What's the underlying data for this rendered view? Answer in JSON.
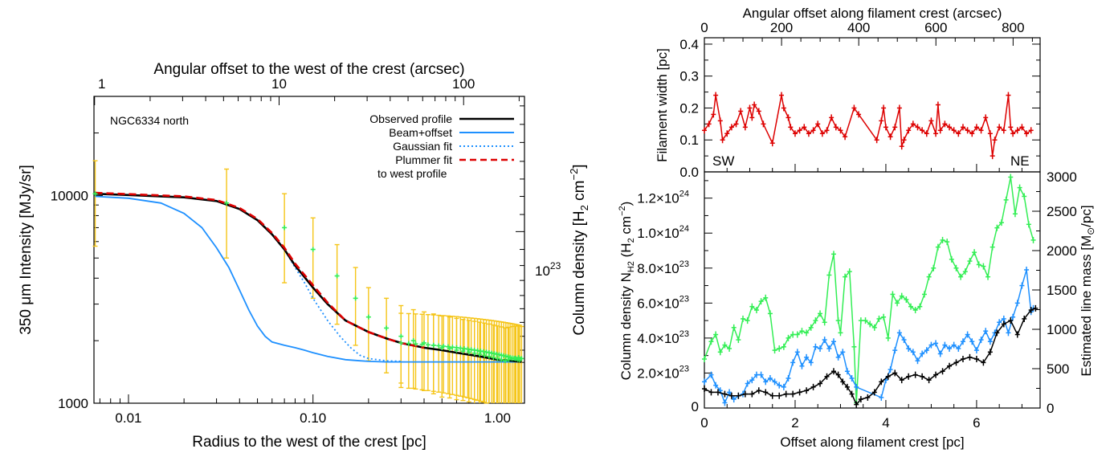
{
  "chart_data": [
    {
      "type": "line",
      "title": "",
      "annotation": "NGC6334 north",
      "xlabel": "Radius to the west of the crest [pc]",
      "x2label": "Angular offset to the west of the crest (arcsec)",
      "ylabel": "350 μm Intensity [MJy/sr]",
      "y2label": "Column density [H2 cm−2]",
      "xscale": "log",
      "yscale": "log",
      "xlim": [
        0.0065,
        1.4
      ],
      "ylim": [
        1000,
        30000
      ],
      "xticks": [
        "0.01",
        "0.10",
        "1.00"
      ],
      "yticks": [
        "1000",
        "10000"
      ],
      "x2ticks": [
        "1",
        "10",
        "100"
      ],
      "y2ticks": [
        "10^23"
      ],
      "legend_position": "top-right",
      "series": [
        {
          "name": "Observed profile",
          "color": "#000000",
          "style": "solid",
          "x": [
            0.0066,
            0.01,
            0.02,
            0.03,
            0.04,
            0.05,
            0.06,
            0.07,
            0.08,
            0.1,
            0.12,
            0.15,
            0.2,
            0.25,
            0.3,
            0.4,
            0.5,
            0.6,
            0.8,
            1.0,
            1.2,
            1.35
          ],
          "y": [
            10200,
            10050,
            9800,
            9400,
            8600,
            7600,
            6500,
            5500,
            4600,
            3600,
            3000,
            2500,
            2200,
            2050,
            1950,
            1850,
            1800,
            1750,
            1680,
            1620,
            1600,
            1580
          ]
        },
        {
          "name": "Beam+offset",
          "color": "#1e90ff",
          "style": "solid",
          "x": [
            0.0066,
            0.01,
            0.015,
            0.02,
            0.025,
            0.03,
            0.035,
            0.04,
            0.045,
            0.05,
            0.055,
            0.06,
            0.07,
            0.08,
            0.09,
            0.1,
            0.12,
            0.15,
            0.18,
            0.2,
            0.25,
            0.3,
            0.5,
            1.0,
            1.35
          ],
          "y": [
            9900,
            9700,
            9200,
            8200,
            7000,
            5600,
            4500,
            3500,
            2800,
            2350,
            2100,
            1970,
            1900,
            1850,
            1800,
            1750,
            1680,
            1620,
            1600,
            1590,
            1580,
            1580,
            1580,
            1580,
            1580
          ]
        },
        {
          "name": "Gaussian fit",
          "color": "#1e90ff",
          "style": "dotted",
          "x": [
            0.0066,
            0.01,
            0.02,
            0.03,
            0.04,
            0.05,
            0.06,
            0.07,
            0.08,
            0.09,
            0.1,
            0.12,
            0.14,
            0.16,
            0.18,
            0.2,
            0.25,
            0.3
          ],
          "y": [
            10200,
            10050,
            9800,
            9400,
            8600,
            7600,
            6500,
            5500,
            4500,
            3800,
            3200,
            2500,
            2100,
            1850,
            1700,
            1640,
            1600,
            1590
          ]
        },
        {
          "name": "Plummer fit to west profile",
          "color": "#dd0000",
          "style": "dashed",
          "x": [
            0.0066,
            0.01,
            0.02,
            0.03,
            0.04,
            0.05,
            0.06,
            0.07,
            0.08,
            0.1,
            0.12,
            0.15,
            0.2,
            0.25,
            0.3,
            0.4
          ],
          "y": [
            10300,
            10150,
            9900,
            9500,
            8700,
            7700,
            6600,
            5600,
            4700,
            3700,
            3050,
            2500,
            2200,
            2050,
            1950,
            1850
          ]
        },
        {
          "name": "",
          "color": "#33ee55",
          "style": "markers",
          "x": [
            0.0066,
            0.034,
            0.07,
            0.1,
            0.135,
            0.17,
            0.2,
            0.25,
            0.3,
            0.35,
            0.4,
            0.45,
            0.5,
            0.55,
            0.6,
            0.65,
            0.7,
            0.75,
            0.8,
            0.85,
            0.9,
            0.95,
            1.0,
            1.05,
            1.1,
            1.15,
            1.2,
            1.25,
            1.3,
            1.35
          ],
          "y": [
            10200,
            9200,
            7000,
            5500,
            4100,
            3200,
            2600,
            2300,
            2100,
            2000,
            1950,
            1900,
            1850,
            1830,
            1800,
            1780,
            1760,
            1740,
            1720,
            1700,
            1680,
            1660,
            1640,
            1620,
            1600,
            1620,
            1640,
            1650,
            1660,
            1640
          ],
          "yerr": [
            4500,
            4200,
            3200,
            2300,
            1700,
            1300,
            1000,
            900,
            850,
            820,
            800,
            790,
            780,
            770,
            760,
            750,
            745,
            740,
            735,
            730,
            725,
            720,
            715,
            710,
            705,
            700,
            700,
            700,
            700,
            700
          ]
        }
      ]
    },
    {
      "type": "line",
      "title": "",
      "ylabel": "Filament width [pc]",
      "x2label": "Angular offset along filament crest (arcsec)",
      "xlim": [
        0,
        7.4
      ],
      "ylim": [
        0,
        0.42
      ],
      "x2lim": [
        0,
        870
      ],
      "yticks": [
        "0.0",
        "0.1",
        "0.2",
        "0.3",
        "0.4"
      ],
      "x2ticks": [
        "0",
        "200",
        "400",
        "600",
        "800"
      ],
      "annotations": [
        "SW",
        "NE"
      ],
      "series": [
        {
          "name": "",
          "color": "#dd0000",
          "x": [
            0,
            0.1,
            0.2,
            0.25,
            0.35,
            0.4,
            0.5,
            0.6,
            0.7,
            0.8,
            0.9,
            1.0,
            1.05,
            1.1,
            1.2,
            1.3,
            1.5,
            1.7,
            1.75,
            1.85,
            1.9,
            2.0,
            2.1,
            2.2,
            2.3,
            2.4,
            2.5,
            2.6,
            2.7,
            2.8,
            2.9,
            3.0,
            3.1,
            3.3,
            3.4,
            3.8,
            3.9,
            3.95,
            4.0,
            4.1,
            4.2,
            4.3,
            4.35,
            4.4,
            4.5,
            4.6,
            4.7,
            4.8,
            4.9,
            5.0,
            5.1,
            5.15,
            5.2,
            5.3,
            5.4,
            5.5,
            5.6,
            5.7,
            5.8,
            5.9,
            6.0,
            6.1,
            6.2,
            6.3,
            6.35,
            6.4,
            6.5,
            6.6,
            6.7,
            6.75,
            6.8,
            6.9,
            7.0,
            7.1,
            7.2
          ],
          "y": [
            0.13,
            0.15,
            0.18,
            0.24,
            0.16,
            0.1,
            0.12,
            0.14,
            0.15,
            0.19,
            0.14,
            0.2,
            0.17,
            0.21,
            0.19,
            0.15,
            0.09,
            0.24,
            0.2,
            0.17,
            0.14,
            0.12,
            0.13,
            0.14,
            0.12,
            0.13,
            0.15,
            0.12,
            0.13,
            0.17,
            0.14,
            0.13,
            0.11,
            0.2,
            0.18,
            0.1,
            0.16,
            0.2,
            0.14,
            0.11,
            0.14,
            0.2,
            0.08,
            0.1,
            0.13,
            0.15,
            0.14,
            0.13,
            0.12,
            0.16,
            0.12,
            0.21,
            0.13,
            0.15,
            0.14,
            0.13,
            0.12,
            0.14,
            0.13,
            0.12,
            0.14,
            0.13,
            0.17,
            0.12,
            0.05,
            0.1,
            0.14,
            0.13,
            0.24,
            0.14,
            0.12,
            0.13,
            0.14,
            0.12,
            0.13
          ]
        }
      ]
    },
    {
      "type": "line",
      "title": "",
      "xlabel": "Offset along filament crest [pc]",
      "ylabel": "Column density N_H2 (H2 cm−2)",
      "y2label": "Estimated line mass [M⊙/pc]",
      "xlim": [
        0,
        7.4
      ],
      "ylim": [
        0,
        1.35e+24
      ],
      "y2lim": [
        0,
        3000
      ],
      "xticks": [
        "0",
        "2",
        "4",
        "6"
      ],
      "yticks": [
        "2.0×10^23",
        "4.0×10^23",
        "6.0×10^23",
        "8.0×10^23",
        "1.0×10^24",
        "1.2×10^24"
      ],
      "y2ticks": [
        "0",
        "500",
        "1000",
        "1500",
        "2000",
        "2500",
        "3000"
      ],
      "series": [
        {
          "name": "",
          "color": "#33ee55",
          "x": [
            0,
            0.15,
            0.25,
            0.35,
            0.45,
            0.55,
            0.65,
            0.75,
            0.85,
            0.95,
            1.05,
            1.15,
            1.25,
            1.35,
            1.45,
            1.55,
            1.65,
            1.75,
            1.85,
            1.95,
            2.05,
            2.15,
            2.25,
            2.35,
            2.45,
            2.55,
            2.65,
            2.75,
            2.85,
            2.95,
            3.0,
            3.1,
            3.2,
            3.3,
            3.35,
            3.45,
            3.55,
            3.65,
            3.75,
            3.85,
            3.95,
            4.05,
            4.15,
            4.25,
            4.35,
            4.45,
            4.55,
            4.65,
            4.75,
            4.85,
            4.95,
            5.05,
            5.15,
            5.25,
            5.35,
            5.45,
            5.55,
            5.65,
            5.75,
            5.85,
            5.95,
            6.05,
            6.15,
            6.25,
            6.35,
            6.45,
            6.55,
            6.65,
            6.75,
            6.85,
            6.95,
            7.05,
            7.15,
            7.25
          ],
          "y": [
            2.8e+23,
            3.8e+23,
            4.2e+23,
            3.2e+23,
            3.6e+23,
            3.4e+23,
            4.6e+23,
            3.9e+23,
            5.1e+23,
            5e+23,
            5.8e+23,
            5.6e+23,
            6.1e+23,
            6.3e+23,
            5.4e+23,
            3.3e+23,
            3.4e+23,
            3.5e+23,
            4e+23,
            4.2e+23,
            4.2e+23,
            4.4e+23,
            4.3e+23,
            4.6e+23,
            5e+23,
            5.4e+23,
            4.9e+23,
            7.6e+23,
            8.8e+23,
            5e+23,
            4.3e+23,
            7.5e+23,
            7.8e+23,
            3.5e+23,
            3e+22,
            5e+23,
            5e+23,
            4.8e+23,
            4.6e+23,
            5.1e+23,
            5.2e+23,
            4e+23,
            6.5e+23,
            6e+23,
            6.4e+23,
            6.2e+23,
            5.8e+23,
            5.6e+23,
            5.8e+23,
            6.5e+23,
            7.5e+23,
            8e+23,
            9.2e+23,
            9.6e+23,
            9.5e+23,
            8.5e+23,
            8e+23,
            7.5e+23,
            7.8e+23,
            8.4e+23,
            8.9e+23,
            8.2e+23,
            8.1e+23,
            7.5e+23,
            9.2e+23,
            1.03e+24,
            1.06e+24,
            1.19e+24,
            1.32e+24,
            1.11e+24,
            1.26e+24,
            1.21e+24,
            1.05e+24,
            9.6e+23
          ]
        },
        {
          "name": "",
          "color": "#1e90ff",
          "x": [
            0,
            0.15,
            0.25,
            0.35,
            0.45,
            0.55,
            0.65,
            0.75,
            0.85,
            0.95,
            1.05,
            1.15,
            1.25,
            1.35,
            1.45,
            1.55,
            1.65,
            1.75,
            1.85,
            1.95,
            2.05,
            2.15,
            2.25,
            2.35,
            2.45,
            2.55,
            2.65,
            2.75,
            2.85,
            2.95,
            3.05,
            3.15,
            3.25,
            3.35,
            3.9,
            4.0,
            4.1,
            4.2,
            4.3,
            4.4,
            4.5,
            4.6,
            4.7,
            4.8,
            4.9,
            5.0,
            5.1,
            5.2,
            5.3,
            5.4,
            5.5,
            5.6,
            5.7,
            5.8,
            5.9,
            6.0,
            6.1,
            6.2,
            6.3,
            6.4,
            6.5,
            6.6,
            6.7,
            6.8,
            6.9,
            7.0,
            7.1,
            7.2,
            7.25
          ],
          "y": [
            1.5e+23,
            1.9e+23,
            1.3e+23,
            1e+23,
            3e+22,
            9e+22,
            5e+22,
            7e+22,
            8e+22,
            1.4e+23,
            1.6e+23,
            1.9e+23,
            1.9e+23,
            1.5e+23,
            1.7e+23,
            1.5e+23,
            1.3e+23,
            1.2e+23,
            1.7e+23,
            2.6e+23,
            3.2e+23,
            2.4e+23,
            2.9e+23,
            2.6e+23,
            3.5e+23,
            3.4e+23,
            3.9e+23,
            3.4e+23,
            3.8e+23,
            2.9e+23,
            3.2e+23,
            2.1e+23,
            1.7e+23,
            1.2e+23,
            6e+22,
            1.6e+23,
            2.2e+23,
            3.3e+23,
            4.3e+23,
            3.9e+23,
            3.4e+23,
            3.2e+23,
            2.7e+23,
            3.1e+23,
            3.3e+23,
            3.6e+23,
            3.7e+23,
            3.1e+23,
            3.6e+23,
            3.4e+23,
            3.6e+23,
            3.4e+23,
            3.8e+23,
            4.2e+23,
            3.8e+23,
            3.3e+23,
            3.9e+23,
            4.4e+23,
            3.8e+23,
            4.3e+23,
            4.9e+23,
            5.1e+23,
            4.3e+23,
            5.2e+23,
            6e+23,
            7e+23,
            7.9e+23,
            5.5e+23,
            5.7e+23
          ]
        },
        {
          "name": "",
          "color": "#000000",
          "x": [
            0,
            0.15,
            0.3,
            0.45,
            0.6,
            0.75,
            0.9,
            1.05,
            1.2,
            1.35,
            1.5,
            1.65,
            1.8,
            1.95,
            2.1,
            2.25,
            2.4,
            2.55,
            2.7,
            2.85,
            2.95,
            3.05,
            3.15,
            3.25,
            3.35,
            3.45,
            3.6,
            3.75,
            3.9,
            4.05,
            4.2,
            4.35,
            4.5,
            4.65,
            4.8,
            4.95,
            5.1,
            5.25,
            5.4,
            5.55,
            5.7,
            5.85,
            6.0,
            6.15,
            6.3,
            6.45,
            6.6,
            6.75,
            6.9,
            7.05,
            7.2,
            7.3
          ],
          "y": [
            1.1e+23,
            9e+22,
            9e+22,
            8e+22,
            7e+22,
            7e+22,
            8e+22,
            8e+22,
            1e+23,
            9e+22,
            7e+22,
            7e+22,
            8e+22,
            8e+22,
            9e+22,
            1e+23,
            1.2e+23,
            1.4e+23,
            1.8e+23,
            2.1e+23,
            1.9e+23,
            1.5e+23,
            1.2e+23,
            8e+22,
            2e+22,
            5e+22,
            6e+22,
            9e+22,
            1.5e+23,
            1.8e+23,
            2e+23,
            1.6e+23,
            1.8e+23,
            1.9e+23,
            1.8e+23,
            1.6e+23,
            1.9e+23,
            2.1e+23,
            2.4e+23,
            2.6e+23,
            2.8e+23,
            2.9e+23,
            2.8e+23,
            2.6e+23,
            3.2e+23,
            4.3e+23,
            4.8e+23,
            5e+23,
            4.2e+23,
            5.1e+23,
            5.6e+23,
            5.7e+23
          ]
        }
      ]
    }
  ],
  "legend": [
    {
      "label": "Observed profile",
      "color": "#000000",
      "style": "solid"
    },
    {
      "label": "Beam+offset",
      "color": "#1e90ff",
      "style": "solid"
    },
    {
      "label": "Gaussian fit",
      "color": "#1e90ff",
      "style": "dotted"
    },
    {
      "label": "Plummer fit",
      "color": "#dd0000",
      "style": "dashed"
    },
    {
      "label": "to west profile",
      "color": "",
      "style": "none"
    }
  ],
  "labels": {
    "left_xlabel": "Radius to the west of the crest [pc]",
    "left_toplabel": "Angular offset to the west of the crest (arcsec)",
    "left_ylabel": "350 μm Intensity [MJy/sr]",
    "left_y2label_main": "Column density [H",
    "left_y2label_sub": "2",
    "left_y2label_end": " cm",
    "left_y2label_sup": "−2",
    "left_y2label_close": "]",
    "left_annotation": "NGC6334 north",
    "right_toplabel": "Angular offset along filament crest (arcsec)",
    "right_width_ylabel": "Filament width [pc]",
    "right_sw": "SW",
    "right_ne": "NE",
    "right_xlabel": "Offset along filament crest [pc]",
    "right_nh2_a": "Column density N",
    "right_nh2_b": "H2",
    "right_nh2_c": " (H",
    "right_nh2_d": "2",
    "right_nh2_e": " cm",
    "right_nh2_f": "−2",
    "right_nh2_g": ")",
    "right_mass_a": "Estimated line mass [M",
    "right_mass_b": "⊙",
    "right_mass_c": "/pc]",
    "left_y2_tick_base": "10",
    "left_y2_tick_exp": "23"
  }
}
